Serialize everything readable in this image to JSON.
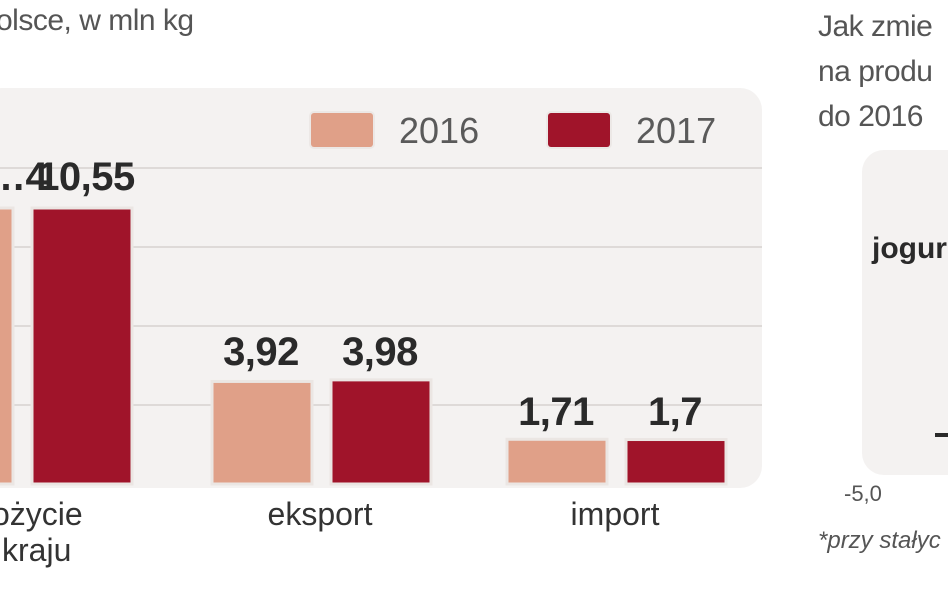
{
  "chart_data": {
    "type": "bar",
    "title": "...olsce, w mln kg",
    "categories": [
      "...ożycie\nkraju",
      "eksport",
      "import"
    ],
    "series": [
      {
        "name": "2016",
        "color": "#e0a088",
        "values": [
          null,
          3.92,
          1.71
        ],
        "labels": [
          "…4",
          "3,92",
          "1,71"
        ]
      },
      {
        "name": "2017",
        "color": "#a0142a",
        "values": [
          10.55,
          3.98,
          1.7
        ],
        "labels": [
          "10,55",
          "3,98",
          "1,7"
        ]
      }
    ],
    "ylim": [
      0,
      12
    ],
    "grid": true
  },
  "left": {
    "subtitle": "olsce, w mln kg",
    "categories": [
      "ożycie",
      "kraju",
      "eksport",
      "import"
    ],
    "legend": [
      "2016",
      "2017"
    ]
  },
  "right": {
    "title_lines": [
      "Jak zmie",
      "na produ",
      "do 2016"
    ],
    "item": "jogur",
    "axis": "-5,0",
    "footnote": "*przy stałyc"
  },
  "colors": {
    "c2016": "#e0a088",
    "c2017": "#a0142a"
  }
}
